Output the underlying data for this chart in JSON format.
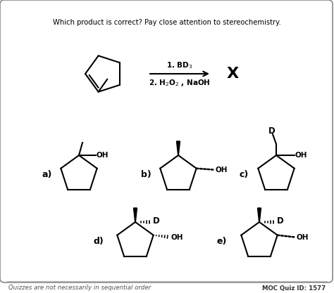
{
  "question_text": "Which product is correct? Pay close attention to stereochemistry.",
  "footer_left": "Quizzes are not necessarily in sequential order",
  "footer_right": "MOC Quiz ID: 1577",
  "bg_color": "#f0f0f0",
  "text_color": "#000000",
  "fig_width": 4.74,
  "fig_height": 4.17,
  "dpi": 100
}
